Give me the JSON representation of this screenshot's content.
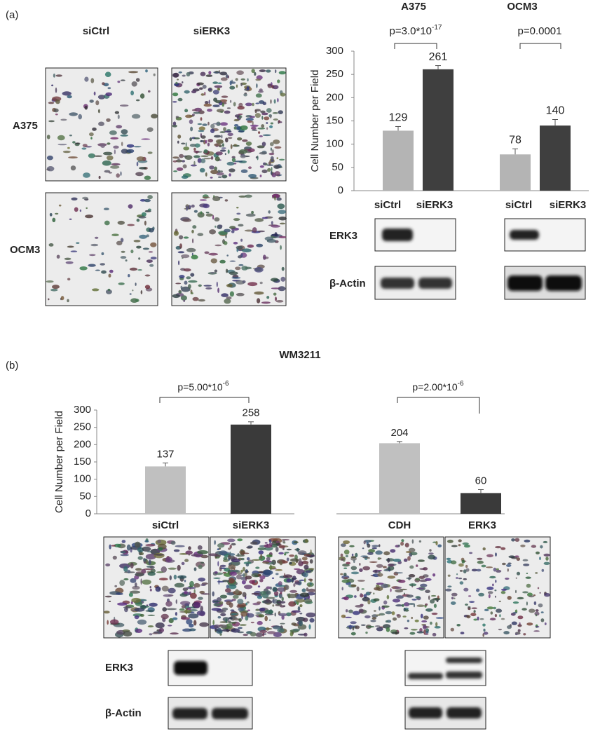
{
  "figure": {
    "panel_a": "(a)",
    "panel_b": "(b)",
    "title_b": "WM3211",
    "a_columns": [
      "siCtrl",
      "siERK3"
    ],
    "a_rows": [
      "A375",
      "OCM3"
    ],
    "blot_labels_a": [
      "ERK3",
      "β-Actin"
    ],
    "blot_labels_b": [
      "ERK3",
      "β-Actin"
    ]
  },
  "chart_data": [
    {
      "type": "bar",
      "title": "A375",
      "ylabel": "Cell Number per Field",
      "categories": [
        "siCtrl",
        "siERK3"
      ],
      "values": [
        129,
        261
      ],
      "errors": [
        9,
        8
      ],
      "colors": [
        "#b4b4b4",
        "#3f3f3f"
      ],
      "ylim": [
        0,
        300
      ],
      "yticks": [
        0,
        50,
        100,
        150,
        200,
        250,
        300
      ],
      "annotation": {
        "text": "p=3.0*10",
        "sup": "-17"
      }
    },
    {
      "type": "bar",
      "title": "OCM3",
      "categories": [
        "siCtrl",
        "siERK3"
      ],
      "values": [
        78,
        140
      ],
      "errors": [
        12,
        13
      ],
      "colors": [
        "#b4b4b4",
        "#3f3f3f"
      ],
      "ylim": [
        0,
        300
      ],
      "annotation": {
        "text": "p=0.0001"
      }
    },
    {
      "type": "bar",
      "ylabel": "Cell Number per Field",
      "categories": [
        "siCtrl",
        "siERK3"
      ],
      "values": [
        137,
        258
      ],
      "errors": [
        10,
        8
      ],
      "colors": [
        "#c0c0c0",
        "#3a3a3a"
      ],
      "ylim": [
        0,
        300
      ],
      "yticks": [
        0,
        50,
        100,
        150,
        200,
        250,
        300
      ],
      "annotation": {
        "text": "p=5.00*10",
        "sup": "-6"
      }
    },
    {
      "type": "bar",
      "categories": [
        "CDH",
        "ERK3"
      ],
      "values": [
        204,
        60
      ],
      "errors": [
        5,
        10
      ],
      "colors": [
        "#c0c0c0",
        "#3a3a3a"
      ],
      "ylim": [
        0,
        300
      ],
      "annotation": {
        "text": "p=2.00*10",
        "sup": "-6"
      }
    }
  ]
}
